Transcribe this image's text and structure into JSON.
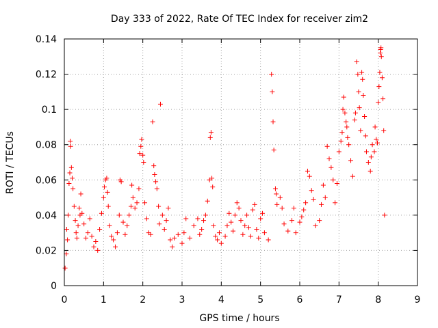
{
  "chart_data": {
    "type": "scatter",
    "title": "Day 333 of 2022, Rate Of TEC Index for receiver zim2",
    "xlabel": "GPS time / hours",
    "ylabel": "ROTI / TECUs",
    "xlim": [
      0,
      9
    ],
    "ylim": [
      0,
      0.14
    ],
    "xticks": [
      0,
      1,
      2,
      3,
      4,
      5,
      6,
      7,
      8,
      9
    ],
    "yticks": [
      0,
      0.02,
      0.04,
      0.06,
      0.08,
      0.1,
      0.12,
      0.14
    ],
    "ytick_labels": [
      "0",
      "0.02",
      "0.04",
      "0.06",
      "0.08",
      "0.1",
      "0.12",
      "0.14"
    ],
    "xtick_labels": [
      "0",
      "1",
      "2",
      "3",
      "4",
      "5",
      "6",
      "7",
      "8",
      "9"
    ],
    "grid": true,
    "marker": "+",
    "color": "#ff0000",
    "series": [
      {
        "points": [
          [
            0.02,
            0.01
          ],
          [
            0.05,
            0.018
          ],
          [
            0.06,
            0.032
          ],
          [
            0.08,
            0.026
          ],
          [
            0.1,
            0.04
          ],
          [
            0.12,
            0.058
          ],
          [
            0.14,
            0.064
          ],
          [
            0.15,
            0.082
          ],
          [
            0.16,
            0.079
          ],
          [
            0.18,
            0.067
          ],
          [
            0.2,
            0.061
          ],
          [
            0.22,
            0.055
          ],
          [
            0.25,
            0.045
          ],
          [
            0.28,
            0.037
          ],
          [
            0.3,
            0.03
          ],
          [
            0.32,
            0.027
          ],
          [
            0.35,
            0.034
          ],
          [
            0.38,
            0.044
          ],
          [
            0.4,
            0.04
          ],
          [
            0.42,
            0.052
          ],
          [
            0.45,
            0.041
          ],
          [
            0.5,
            0.035
          ],
          [
            0.55,
            0.027
          ],
          [
            0.6,
            0.03
          ],
          [
            0.65,
            0.038
          ],
          [
            0.7,
            0.028
          ],
          [
            0.75,
            0.022
          ],
          [
            0.8,
            0.025
          ],
          [
            0.85,
            0.02
          ],
          [
            0.9,
            0.032
          ],
          [
            0.95,
            0.041
          ],
          [
            1.0,
            0.05
          ],
          [
            1.02,
            0.056
          ],
          [
            1.05,
            0.06
          ],
          [
            1.08,
            0.061
          ],
          [
            1.1,
            0.053
          ],
          [
            1.12,
            0.045
          ],
          [
            1.15,
            0.034
          ],
          [
            1.2,
            0.028
          ],
          [
            1.25,
            0.026
          ],
          [
            1.3,
            0.022
          ],
          [
            1.35,
            0.03
          ],
          [
            1.4,
            0.04
          ],
          [
            1.42,
            0.06
          ],
          [
            1.45,
            0.059
          ],
          [
            1.5,
            0.036
          ],
          [
            1.55,
            0.029
          ],
          [
            1.6,
            0.034
          ],
          [
            1.65,
            0.04
          ],
          [
            1.7,
            0.045
          ],
          [
            1.72,
            0.057
          ],
          [
            1.75,
            0.05
          ],
          [
            1.8,
            0.044
          ],
          [
            1.85,
            0.047
          ],
          [
            1.9,
            0.055
          ],
          [
            1.92,
            0.075
          ],
          [
            1.95,
            0.079
          ],
          [
            1.97,
            0.083
          ],
          [
            2.0,
            0.074
          ],
          [
            2.02,
            0.07
          ],
          [
            2.05,
            0.047
          ],
          [
            2.1,
            0.038
          ],
          [
            2.15,
            0.03
          ],
          [
            2.2,
            0.029
          ],
          [
            2.25,
            0.093
          ],
          [
            2.28,
            0.068
          ],
          [
            2.3,
            0.063
          ],
          [
            2.33,
            0.059
          ],
          [
            2.36,
            0.055
          ],
          [
            2.4,
            0.045
          ],
          [
            2.42,
            0.035
          ],
          [
            2.45,
            0.103
          ],
          [
            2.5,
            0.04
          ],
          [
            2.55,
            0.032
          ],
          [
            2.6,
            0.037
          ],
          [
            2.65,
            0.044
          ],
          [
            2.7,
            0.026
          ],
          [
            2.75,
            0.022
          ],
          [
            2.8,
            0.027
          ],
          [
            2.9,
            0.029
          ],
          [
            3.0,
            0.024
          ],
          [
            3.05,
            0.03
          ],
          [
            3.1,
            0.038
          ],
          [
            3.2,
            0.027
          ],
          [
            3.3,
            0.034
          ],
          [
            3.4,
            0.038
          ],
          [
            3.45,
            0.029
          ],
          [
            3.5,
            0.032
          ],
          [
            3.55,
            0.037
          ],
          [
            3.6,
            0.04
          ],
          [
            3.65,
            0.048
          ],
          [
            3.7,
            0.06
          ],
          [
            3.72,
            0.084
          ],
          [
            3.74,
            0.087
          ],
          [
            3.76,
            0.061
          ],
          [
            3.78,
            0.056
          ],
          [
            3.8,
            0.034
          ],
          [
            3.85,
            0.028
          ],
          [
            3.9,
            0.026
          ],
          [
            3.95,
            0.03
          ],
          [
            4.0,
            0.024
          ],
          [
            4.1,
            0.028
          ],
          [
            4.15,
            0.034
          ],
          [
            4.2,
            0.041
          ],
          [
            4.25,
            0.036
          ],
          [
            4.3,
            0.031
          ],
          [
            4.35,
            0.04
          ],
          [
            4.4,
            0.047
          ],
          [
            4.45,
            0.044
          ],
          [
            4.5,
            0.037
          ],
          [
            4.55,
            0.029
          ],
          [
            4.6,
            0.034
          ],
          [
            4.65,
            0.04
          ],
          [
            4.7,
            0.033
          ],
          [
            4.75,
            0.028
          ],
          [
            4.8,
            0.043
          ],
          [
            4.85,
            0.046
          ],
          [
            4.9,
            0.032
          ],
          [
            4.95,
            0.027
          ],
          [
            5.0,
            0.038
          ],
          [
            5.05,
            0.041
          ],
          [
            5.1,
            0.03
          ],
          [
            5.2,
            0.026
          ],
          [
            5.28,
            0.12
          ],
          [
            5.3,
            0.11
          ],
          [
            5.32,
            0.093
          ],
          [
            5.34,
            0.077
          ],
          [
            5.38,
            0.055
          ],
          [
            5.4,
            0.052
          ],
          [
            5.42,
            0.046
          ],
          [
            5.5,
            0.05
          ],
          [
            5.55,
            0.044
          ],
          [
            5.6,
            0.035
          ],
          [
            5.7,
            0.031
          ],
          [
            5.8,
            0.037
          ],
          [
            5.85,
            0.044
          ],
          [
            5.9,
            0.03
          ],
          [
            6.0,
            0.036
          ],
          [
            6.05,
            0.039
          ],
          [
            6.1,
            0.043
          ],
          [
            6.15,
            0.047
          ],
          [
            6.2,
            0.065
          ],
          [
            6.25,
            0.062
          ],
          [
            6.3,
            0.054
          ],
          [
            6.35,
            0.049
          ],
          [
            6.4,
            0.034
          ],
          [
            6.5,
            0.037
          ],
          [
            6.55,
            0.046
          ],
          [
            6.6,
            0.057
          ],
          [
            6.65,
            0.05
          ],
          [
            6.7,
            0.079
          ],
          [
            6.75,
            0.072
          ],
          [
            6.8,
            0.067
          ],
          [
            6.85,
            0.06
          ],
          [
            6.9,
            0.047
          ],
          [
            6.95,
            0.058
          ],
          [
            7.0,
            0.076
          ],
          [
            7.05,
            0.082
          ],
          [
            7.08,
            0.087
          ],
          [
            7.1,
            0.1
          ],
          [
            7.12,
            0.107
          ],
          [
            7.15,
            0.098
          ],
          [
            7.18,
            0.093
          ],
          [
            7.2,
            0.09
          ],
          [
            7.22,
            0.084
          ],
          [
            7.25,
            0.08
          ],
          [
            7.3,
            0.071
          ],
          [
            7.35,
            0.062
          ],
          [
            7.4,
            0.094
          ],
          [
            7.42,
            0.098
          ],
          [
            7.45,
            0.127
          ],
          [
            7.48,
            0.12
          ],
          [
            7.5,
            0.11
          ],
          [
            7.52,
            0.101
          ],
          [
            7.55,
            0.088
          ],
          [
            7.58,
            0.121
          ],
          [
            7.6,
            0.117
          ],
          [
            7.62,
            0.108
          ],
          [
            7.65,
            0.096
          ],
          [
            7.68,
            0.085
          ],
          [
            7.7,
            0.076
          ],
          [
            7.75,
            0.07
          ],
          [
            7.8,
            0.065
          ],
          [
            7.82,
            0.073
          ],
          [
            7.85,
            0.08
          ],
          [
            7.9,
            0.076
          ],
          [
            7.92,
            0.09
          ],
          [
            7.95,
            0.083
          ],
          [
            7.98,
            0.081
          ],
          [
            8.0,
            0.104
          ],
          [
            8.02,
            0.113
          ],
          [
            8.04,
            0.121
          ],
          [
            8.05,
            0.132
          ],
          [
            8.06,
            0.134
          ],
          [
            8.07,
            0.135
          ],
          [
            8.08,
            0.13
          ],
          [
            8.1,
            0.118
          ],
          [
            8.12,
            0.106
          ],
          [
            8.14,
            0.088
          ],
          [
            8.16,
            0.04
          ]
        ]
      }
    ]
  }
}
